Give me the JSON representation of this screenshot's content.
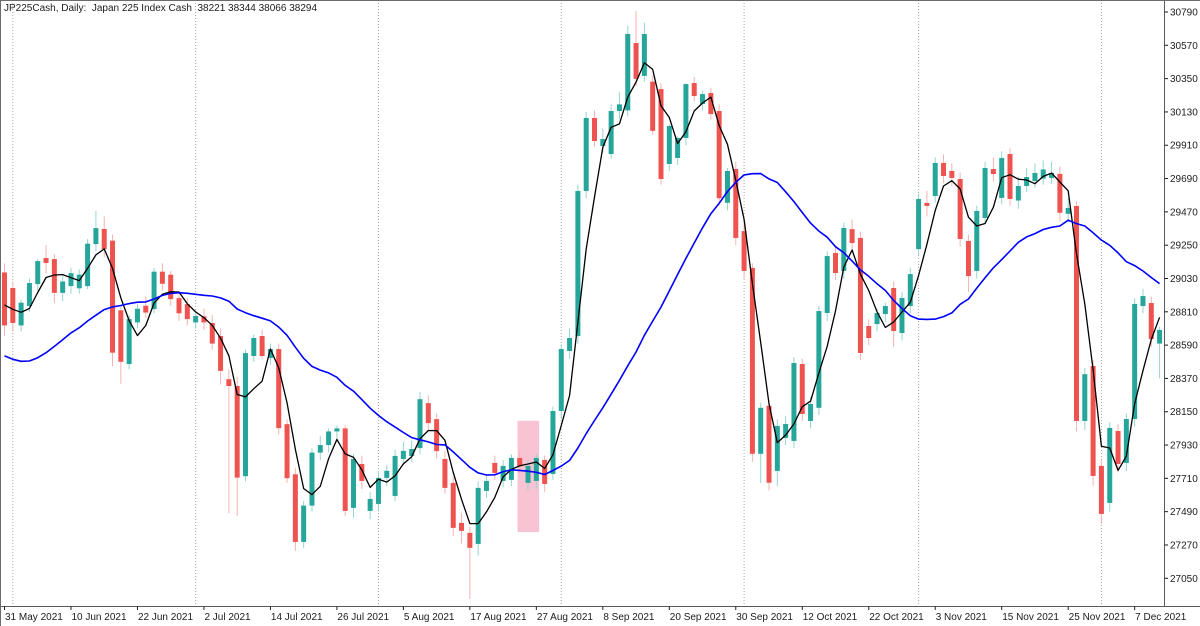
{
  "window": {
    "title_line": "JP225Cash, Daily:  Japan 225 Index Cash  38221 38344 38066 38294"
  },
  "chart_data": {
    "type": "candlestick",
    "symbol": "JP225Cash",
    "timeframe": "Daily",
    "instrument_name": "Japan 225 Index Cash",
    "current_quote": {
      "open": 38221,
      "high": 38344,
      "low": 38066,
      "close": 38294
    },
    "y_axis": {
      "tick_labels": [
        30790,
        30570,
        30350,
        30130,
        29910,
        29690,
        29470,
        29250,
        29030,
        28810,
        28590,
        28370,
        28150,
        27930,
        27710,
        27490,
        27270,
        27050
      ],
      "visible_min": 26870,
      "visible_max": 30860
    },
    "x_axis": {
      "tick_labels": [
        "31 May 2021",
        "10 Jun 2021",
        "22 Jun 2021",
        "2 Jul 2021",
        "14 Jul 2021",
        "26 Jul 2021",
        "5 Aug 2021",
        "17 Aug 2021",
        "27 Aug 2021",
        "8 Sep 2021",
        "20 Sep 2021",
        "30 Sep 2021",
        "12 Oct 2021",
        "22 Oct 2021",
        "3 Nov 2021",
        "15 Nov 2021",
        "25 Nov 2021",
        "7 Dec 2021"
      ],
      "candles_per_label": 8,
      "x_start_label": "31 May 2021",
      "x_interval": "1 trading day (weekdays)"
    },
    "month_start_gridline_indices": [
      1,
      23,
      45,
      67,
      89,
      110,
      132
    ],
    "grid_style": "vertical dotted lines at month starts, no horizontal grid",
    "candles_ohlc": [
      [
        29070,
        29130,
        28650,
        28720
      ],
      [
        28967,
        29010,
        28680,
        28736
      ],
      [
        28720,
        28890,
        28680,
        28870
      ],
      [
        28848,
        29030,
        28810,
        29000
      ],
      [
        28993,
        29160,
        28950,
        29145
      ],
      [
        29165,
        29250,
        29060,
        29132
      ],
      [
        29158,
        29190,
        28870,
        28935
      ],
      [
        28935,
        29045,
        28880,
        29010
      ],
      [
        28980,
        29100,
        28930,
        29065
      ],
      [
        28965,
        29090,
        28930,
        29055
      ],
      [
        28980,
        29290,
        28960,
        29260
      ],
      [
        29257,
        29475,
        29210,
        29363
      ],
      [
        29357,
        29440,
        29170,
        29224
      ],
      [
        29280,
        29320,
        28450,
        28540
      ],
      [
        28820,
        28850,
        28335,
        28480
      ],
      [
        28465,
        28790,
        28430,
        28762
      ],
      [
        28740,
        28860,
        28700,
        28830
      ],
      [
        28850,
        28910,
        28770,
        28805
      ],
      [
        28828,
        29100,
        28800,
        29075
      ],
      [
        29075,
        29130,
        28950,
        28995
      ],
      [
        29055,
        29080,
        28850,
        28894
      ],
      [
        28900,
        28940,
        28750,
        28800
      ],
      [
        28861,
        28900,
        28720,
        28762
      ],
      [
        28740,
        28800,
        28700,
        28782
      ],
      [
        28780,
        28830,
        28690,
        28740
      ],
      [
        28736,
        28790,
        28560,
        28600
      ],
      [
        28650,
        28700,
        28330,
        28420
      ],
      [
        28365,
        28430,
        27480,
        28320
      ],
      [
        28320,
        28380,
        27460,
        27715
      ],
      [
        27724,
        28560,
        27690,
        28537
      ],
      [
        28518,
        28660,
        28480,
        28637
      ],
      [
        28650,
        28690,
        28500,
        28518
      ],
      [
        28505,
        28600,
        28460,
        28564
      ],
      [
        28564,
        28600,
        28000,
        28042
      ],
      [
        28068,
        28100,
        27680,
        27711
      ],
      [
        27737,
        27780,
        27230,
        27290
      ],
      [
        27290,
        27560,
        27250,
        27530
      ],
      [
        27530,
        27910,
        27490,
        27880
      ],
      [
        27880,
        27990,
        27830,
        27930
      ],
      [
        27930,
        28040,
        27880,
        28020
      ],
      [
        28020,
        28060,
        27950,
        28040
      ],
      [
        28040,
        28060,
        27460,
        27495
      ],
      [
        27515,
        27870,
        27450,
        27838
      ],
      [
        27805,
        27860,
        27640,
        27693
      ],
      [
        27495,
        27620,
        27440,
        27574
      ],
      [
        27541,
        27760,
        27500,
        27713
      ],
      [
        27713,
        27800,
        27660,
        27760
      ],
      [
        27594,
        27900,
        27560,
        27858
      ],
      [
        27838,
        27950,
        27800,
        27891
      ],
      [
        27858,
        27960,
        27820,
        27904
      ],
      [
        27910,
        28280,
        27870,
        28233
      ],
      [
        28207,
        28260,
        28030,
        28075
      ],
      [
        28101,
        28140,
        27840,
        27890
      ],
      [
        27838,
        27890,
        27610,
        27647
      ],
      [
        27680,
        27720,
        27330,
        27383
      ],
      [
        27416,
        27480,
        27280,
        27363
      ],
      [
        27350,
        27390,
        26913,
        27251
      ],
      [
        27277,
        27690,
        27200,
        27647
      ],
      [
        27627,
        27740,
        27580,
        27693
      ],
      [
        27812,
        27860,
        27700,
        27746
      ],
      [
        27693,
        27830,
        27650,
        27792
      ],
      [
        27700,
        27870,
        27660,
        27845
      ],
      [
        27845,
        27890,
        27740,
        27790
      ],
      [
        27680,
        27830,
        27630,
        27792
      ],
      [
        27693,
        27870,
        27640,
        27845
      ],
      [
        27832,
        27860,
        27620,
        27673
      ],
      [
        27739,
        28185,
        27700,
        28155
      ],
      [
        28155,
        28595,
        28100,
        28564
      ],
      [
        28551,
        28700,
        28500,
        28637
      ],
      [
        28650,
        29650,
        28600,
        29608
      ],
      [
        29608,
        30130,
        29560,
        30090
      ],
      [
        30090,
        30140,
        29900,
        29938
      ],
      [
        29905,
        30020,
        29860,
        29951
      ],
      [
        29852,
        30180,
        29820,
        30136
      ],
      [
        30136,
        30260,
        30080,
        30180
      ],
      [
        30140,
        30700,
        30100,
        30645
      ],
      [
        30585,
        30797,
        30300,
        30348
      ],
      [
        30368,
        30720,
        30330,
        30645
      ],
      [
        30330,
        30370,
        29980,
        30005
      ],
      [
        30281,
        30320,
        29650,
        29687
      ],
      [
        29786,
        30050,
        29740,
        30037
      ],
      [
        29826,
        29970,
        29780,
        29958
      ],
      [
        29958,
        30320,
        29910,
        30314
      ],
      [
        30321,
        30360,
        30200,
        30235
      ],
      [
        30182,
        30270,
        30140,
        30248
      ],
      [
        30255,
        30290,
        30080,
        30116
      ],
      [
        30136,
        30180,
        29510,
        29560
      ],
      [
        29530,
        29760,
        29480,
        29740
      ],
      [
        29753,
        29800,
        29250,
        29298
      ],
      [
        29343,
        29390,
        29030,
        29080
      ],
      [
        29100,
        29130,
        27820,
        27872
      ],
      [
        27872,
        28210,
        27680,
        28176
      ],
      [
        28189,
        28230,
        27630,
        27681
      ],
      [
        27759,
        28100,
        27660,
        28056
      ],
      [
        27977,
        28120,
        27930,
        28069
      ],
      [
        27957,
        28510,
        27910,
        28472
      ],
      [
        28465,
        28500,
        28090,
        28135
      ],
      [
        28089,
        28250,
        28040,
        28201
      ],
      [
        28176,
        28850,
        28130,
        28815
      ],
      [
        28802,
        29210,
        28750,
        29178
      ],
      [
        29198,
        29240,
        29020,
        29066
      ],
      [
        29080,
        29400,
        29030,
        29364
      ],
      [
        29356,
        29420,
        29200,
        29264
      ],
      [
        29298,
        29340,
        28490,
        28538
      ],
      [
        28716,
        28760,
        28590,
        28637
      ],
      [
        28729,
        28830,
        28680,
        28802
      ],
      [
        28795,
        28870,
        28740,
        28848
      ],
      [
        28967,
        29010,
        28580,
        28683
      ],
      [
        28670,
        28940,
        28620,
        28901
      ],
      [
        28848,
        29100,
        28800,
        29059
      ],
      [
        29224,
        29590,
        29180,
        29555
      ],
      [
        29529,
        29610,
        29440,
        29509
      ],
      [
        29575,
        29830,
        29530,
        29793
      ],
      [
        29793,
        29850,
        29660,
        29707
      ],
      [
        29740,
        29790,
        29640,
        29694
      ],
      [
        29687,
        29730,
        29240,
        29291
      ],
      [
        29278,
        29320,
        28940,
        29046
      ],
      [
        29080,
        29510,
        29030,
        29476
      ],
      [
        29430,
        29800,
        29390,
        29760
      ],
      [
        29753,
        29830,
        29670,
        29720
      ],
      [
        29562,
        29870,
        29520,
        29826
      ],
      [
        29852,
        29890,
        29510,
        29555
      ],
      [
        29545,
        29700,
        29490,
        29641
      ],
      [
        29641,
        29760,
        29600,
        29700
      ],
      [
        29674,
        29790,
        29630,
        29727
      ],
      [
        29690,
        29810,
        29650,
        29750
      ],
      [
        29694,
        29800,
        29655,
        29727
      ],
      [
        29721,
        29770,
        29410,
        29464
      ],
      [
        29457,
        29560,
        29400,
        29496
      ],
      [
        29509,
        29540,
        28020,
        28089
      ],
      [
        28089,
        28440,
        28030,
        28398
      ],
      [
        28452,
        28490,
        27660,
        27726
      ],
      [
        27792,
        27830,
        27409,
        27475
      ],
      [
        27548,
        28080,
        27490,
        28043
      ],
      [
        28023,
        28070,
        27750,
        27805
      ],
      [
        27812,
        28140,
        27760,
        28102
      ],
      [
        28102,
        28900,
        28050,
        28862
      ],
      [
        28848,
        28960,
        28800,
        28914
      ],
      [
        28868,
        28910,
        28580,
        28630
      ],
      [
        28600,
        28710,
        28370,
        28690
      ]
    ],
    "indicators": [
      {
        "name": "fast moving average",
        "type": "sma",
        "period": 4,
        "color": "#000000"
      },
      {
        "name": "slow moving average",
        "type": "sma",
        "period": 25,
        "color": "#0000ff"
      }
    ],
    "ma_prehistory_closes": [
      29150,
      29300,
      29200,
      28950,
      28600,
      28300,
      27900,
      27900,
      27950,
      28200,
      28150,
      28400,
      28300,
      28100,
      28250,
      28450,
      28600,
      28750,
      28600,
      28400,
      28550,
      28700,
      28850,
      28950,
      28900
    ],
    "highlight_region": {
      "start_index": 61.8,
      "end_index": 64.4,
      "top_price": 28090,
      "bottom_price": 27355,
      "color": "rgba(236,100,140,0.38)"
    },
    "colors": {
      "up_body": "#26a69a",
      "up_wick": "#96d5cf",
      "down_body": "#ef5350",
      "down_wick": "#f6b3b0",
      "ma_fast": "#000000",
      "ma_slow": "#0000ff",
      "grid": "#a6a6a6",
      "axis_line": "#5a5a5a",
      "axis_text": "#1c1c1c",
      "background": "#ffffff"
    }
  }
}
